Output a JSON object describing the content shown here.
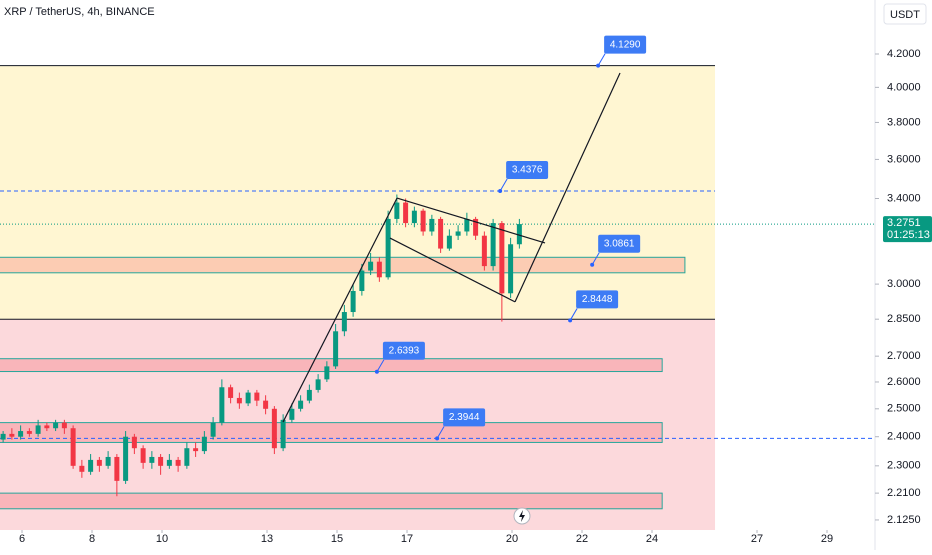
{
  "chart_data": {
    "type": "candlestick",
    "title": "XRP / TetherUS, 4h, BINANCE",
    "currency": "USDT",
    "log_scale": true,
    "up_color": "#089981",
    "down_color": "#f23645",
    "xlim": [
      5.371,
      30.371
    ],
    "xticks": [
      6,
      8,
      10,
      13,
      15,
      17,
      20,
      22,
      24,
      27,
      29
    ],
    "ylim": [
      2.094,
      4.545
    ],
    "yticks": [
      {
        "value": 4.2,
        "label": "4.2000"
      },
      {
        "value": 4.0,
        "label": "4.0000"
      },
      {
        "value": 3.8,
        "label": "3.8000"
      },
      {
        "value": 3.6,
        "label": "3.6000"
      },
      {
        "value": 3.4,
        "label": "3.4000"
      },
      {
        "value": 3.0,
        "label": "3.0000"
      },
      {
        "value": 2.85,
        "label": "2.8500"
      },
      {
        "value": 2.7,
        "label": "2.7000"
      },
      {
        "value": 2.6,
        "label": "2.6000"
      },
      {
        "value": 2.5,
        "label": "2.5000"
      },
      {
        "value": 2.4,
        "label": "2.4000"
      },
      {
        "value": 2.3,
        "label": "2.3000"
      },
      {
        "value": 2.21,
        "label": "2.2100"
      },
      {
        "value": 2.125,
        "label": "2.1250"
      }
    ],
    "x": [
      5.46,
      5.71,
      5.96,
      6.21,
      6.46,
      6.71,
      6.96,
      7.21,
      7.46,
      7.71,
      7.96,
      8.21,
      8.46,
      8.71,
      8.96,
      9.21,
      9.46,
      9.71,
      9.96,
      10.21,
      10.46,
      10.71,
      10.96,
      11.21,
      11.46,
      11.71,
      11.96,
      12.21,
      12.46,
      12.71,
      12.96,
      13.21,
      13.46,
      13.71,
      13.96,
      14.21,
      14.46,
      14.71,
      14.96,
      15.21,
      15.46,
      15.71,
      15.96,
      16.21,
      16.46,
      16.71,
      16.96,
      17.21,
      17.46,
      17.71,
      17.96,
      18.21,
      18.46,
      18.71,
      18.96,
      19.21,
      19.46,
      19.71,
      19.96,
      20.21
    ],
    "open": [
      2.39,
      2.41,
      2.4,
      2.42,
      2.41,
      2.44,
      2.43,
      2.45,
      2.43,
      2.3,
      2.28,
      2.32,
      2.3,
      2.33,
      2.25,
      2.4,
      2.36,
      2.31,
      2.33,
      2.3,
      2.32,
      2.3,
      2.36,
      2.35,
      2.4,
      2.45,
      2.58,
      2.54,
      2.52,
      2.56,
      2.53,
      2.5,
      2.36,
      2.46,
      2.5,
      2.53,
      2.57,
      2.61,
      2.66,
      2.8,
      2.88,
      2.97,
      3.06,
      3.1,
      3.03,
      3.3,
      3.38,
      3.28,
      3.34,
      3.24,
      3.3,
      3.16,
      3.22,
      3.24,
      3.3,
      3.22,
      3.08,
      3.28,
      2.96,
      3.18
    ],
    "high": [
      2.42,
      2.43,
      2.44,
      2.43,
      2.46,
      2.45,
      2.46,
      2.46,
      2.44,
      2.32,
      2.34,
      2.33,
      2.35,
      2.34,
      2.42,
      2.41,
      2.37,
      2.35,
      2.34,
      2.34,
      2.33,
      2.38,
      2.38,
      2.42,
      2.47,
      2.61,
      2.59,
      2.56,
      2.57,
      2.57,
      2.55,
      2.51,
      2.48,
      2.52,
      2.55,
      2.59,
      2.63,
      2.68,
      2.83,
      2.91,
      3.0,
      3.09,
      3.14,
      3.12,
      3.34,
      3.42,
      3.4,
      3.36,
      3.35,
      3.32,
      3.31,
      3.25,
      3.27,
      3.33,
      3.31,
      3.24,
      3.3,
      3.29,
      3.21,
      3.3
    ],
    "low": [
      2.38,
      2.39,
      2.39,
      2.4,
      2.4,
      2.42,
      2.42,
      2.41,
      2.29,
      2.26,
      2.27,
      2.28,
      2.29,
      2.2,
      2.24,
      2.34,
      2.29,
      2.29,
      2.27,
      2.29,
      2.28,
      2.29,
      2.33,
      2.34,
      2.39,
      2.44,
      2.52,
      2.5,
      2.51,
      2.51,
      2.48,
      2.34,
      2.35,
      2.45,
      2.49,
      2.52,
      2.56,
      2.6,
      2.65,
      2.78,
      2.86,
      2.95,
      3.04,
      3.01,
      3.02,
      3.28,
      3.26,
      3.26,
      3.22,
      3.22,
      3.14,
      3.15,
      3.2,
      3.22,
      3.2,
      3.06,
      3.06,
      2.84,
      2.94,
      3.16
    ],
    "close": [
      2.41,
      2.4,
      2.42,
      2.41,
      2.44,
      2.43,
      2.45,
      2.43,
      2.3,
      2.28,
      2.32,
      2.3,
      2.33,
      2.25,
      2.4,
      2.36,
      2.31,
      2.33,
      2.3,
      2.32,
      2.3,
      2.36,
      2.35,
      2.4,
      2.45,
      2.58,
      2.54,
      2.52,
      2.56,
      2.53,
      2.5,
      2.36,
      2.46,
      2.5,
      2.53,
      2.57,
      2.61,
      2.66,
      2.8,
      2.88,
      2.97,
      3.06,
      3.1,
      3.03,
      3.3,
      3.38,
      3.28,
      3.34,
      3.24,
      3.3,
      3.16,
      3.22,
      3.24,
      3.3,
      3.22,
      3.08,
      3.28,
      2.96,
      3.18,
      3.2751
    ],
    "last_price": 3.2751,
    "countdown": "01:25:13",
    "zones": [
      {
        "top": 4.129,
        "bottom": 2.85,
        "x_end": 25.8,
        "color": "#fff6d2"
      },
      {
        "top": 2.85,
        "x_end": 25.8,
        "color": "#fcd9dc"
      }
    ],
    "boxes": [
      {
        "top": 3.12,
        "bottom": 3.05,
        "x_end": 24.94
      },
      {
        "top": 2.69,
        "bottom": 2.64,
        "x_end": 24.29
      },
      {
        "top": 2.45,
        "bottom": 2.38,
        "x_end": 24.29
      },
      {
        "top": 2.21,
        "bottom": 2.16,
        "x_end": 24.29
      }
    ],
    "levels": [
      {
        "value": 4.129,
        "style": "solid",
        "x_end": 25.8
      },
      {
        "value": 2.85,
        "style": "solid",
        "x_end": 25.8
      },
      {
        "value": 3.4376,
        "style": "dashed",
        "x_end": 25.8
      },
      {
        "value": 2.3944,
        "style": "dashed"
      }
    ],
    "trendlines": [
      [
        [
          13.457,
          2.452
        ],
        [
          16.714,
          3.402
        ]
      ],
      [
        [
          16.714,
          3.402
        ],
        [
          20.943,
          3.186
        ]
      ],
      [
        [
          16.514,
          3.209
        ],
        [
          20.086,
          2.923
        ]
      ],
      [
        [
          20.086,
          2.923
        ],
        [
          23.086,
          4.085
        ]
      ]
    ],
    "callouts": [
      {
        "value": 4.129,
        "label": "4.1290",
        "x": 22.46
      },
      {
        "value": 3.4376,
        "label": "3.4376",
        "x": 19.66
      },
      {
        "value": 3.0861,
        "label": "3.0861",
        "x": 22.29
      },
      {
        "value": 2.8448,
        "label": "2.8448",
        "x": 21.66
      },
      {
        "value": 2.6393,
        "label": "2.6393",
        "x": 16.14
      },
      {
        "value": 2.3944,
        "label": "2.3944",
        "x": 17.86
      }
    ]
  }
}
